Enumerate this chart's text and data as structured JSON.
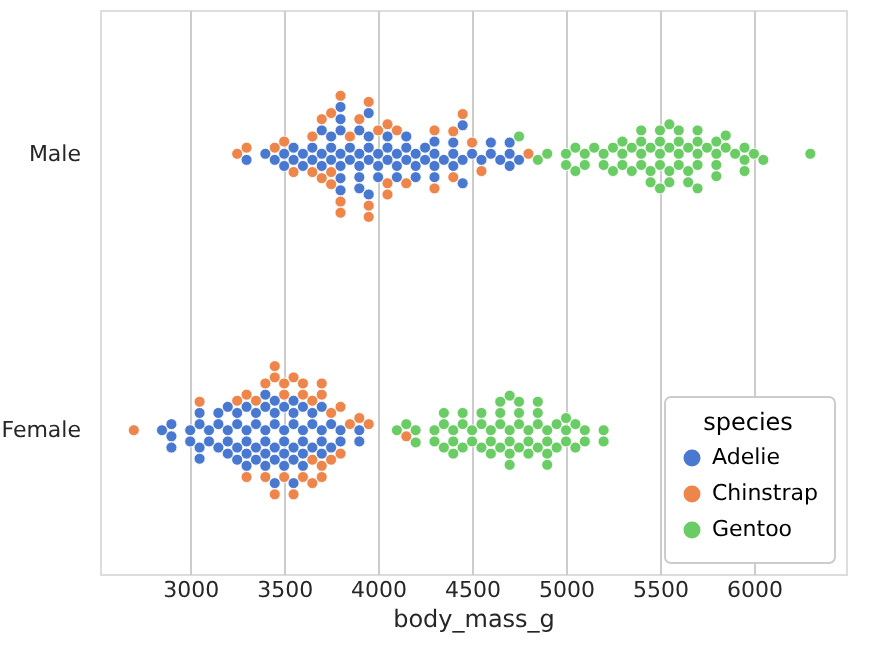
{
  "chart_data": {
    "type": "scatter",
    "orientation": "horizontal",
    "xlabel": "body_mass_g",
    "legend_title": "species",
    "legend": "bottom right",
    "grid": "x",
    "marker": "circle",
    "categories": [
      "Male",
      "Female"
    ],
    "xlim": [
      2520,
      6490
    ],
    "xticks": [
      3000,
      3500,
      4000,
      4500,
      5000,
      5500,
      6000
    ],
    "series": [
      {
        "name": "Adelie",
        "color": "#4878d0",
        "x": [
          "Male",
          "Male",
          "Male",
          "Male",
          "Male",
          "Male",
          "Male",
          "Male",
          "Male",
          "Male",
          "Male",
          "Male",
          "Male",
          "Male",
          "Male",
          "Male",
          "Male",
          "Male",
          "Male",
          "Male",
          "Male",
          "Male",
          "Male",
          "Male",
          "Male",
          "Male",
          "Male",
          "Male",
          "Male",
          "Male",
          "Male",
          "Male",
          "Male",
          "Male",
          "Male",
          "Male",
          "Male",
          "Male",
          "Male",
          "Male",
          "Male",
          "Male",
          "Male",
          "Male",
          "Male",
          "Male",
          "Male",
          "Male",
          "Male",
          "Male",
          "Male",
          "Male",
          "Male",
          "Male",
          "Male",
          "Male",
          "Male",
          "Male",
          "Male",
          "Male",
          "Male",
          "Male",
          "Male",
          "Male",
          "Male",
          "Male",
          "Male",
          "Male",
          "Male",
          "Male",
          "Male",
          "Male",
          "Male",
          "Female",
          "Female",
          "Female",
          "Female",
          "Female",
          "Female",
          "Female",
          "Female",
          "Female",
          "Female",
          "Female",
          "Female",
          "Female",
          "Female",
          "Female",
          "Female",
          "Female",
          "Female",
          "Female",
          "Female",
          "Female",
          "Female",
          "Female",
          "Female",
          "Female",
          "Female",
          "Female",
          "Female",
          "Female",
          "Female",
          "Female",
          "Female",
          "Female",
          "Female",
          "Female",
          "Female",
          "Female",
          "Female",
          "Female",
          "Female",
          "Female",
          "Female",
          "Female",
          "Female",
          "Female",
          "Female",
          "Female",
          "Female",
          "Female",
          "Female",
          "Female",
          "Female",
          "Female",
          "Female",
          "Female",
          "Female",
          "Female",
          "Female",
          "Female",
          "Female",
          "Female",
          "Female",
          "Female",
          "Female",
          "Female",
          "Female",
          "Female",
          "Female",
          "Female",
          "Female",
          "Female",
          "Female",
          "Female"
        ],
        "values": [
          3300,
          3400,
          3450,
          3500,
          3550,
          3550,
          3600,
          3650,
          3650,
          3700,
          3700,
          3750,
          3750,
          3800,
          3800,
          3800,
          3800,
          3800,
          3800,
          3850,
          3900,
          3900,
          3900,
          3900,
          3950,
          3950,
          3950,
          3950,
          4000,
          4000,
          4050,
          4050,
          4100,
          4100,
          4150,
          4150,
          4200,
          4200,
          4250,
          4300,
          4300,
          4300,
          4400,
          4400,
          4450,
          4450,
          4500,
          4550,
          4600,
          4650,
          4700,
          4700,
          4750,
          3500,
          3700,
          3900,
          4000,
          4050,
          4200,
          4250,
          4300,
          4350,
          3600,
          3750,
          3850,
          4100,
          4150,
          3950,
          3800,
          4400,
          4450,
          4600,
          4700,
          2850,
          2900,
          2900,
          2900,
          3000,
          3050,
          3050,
          3050,
          3100,
          3150,
          3150,
          3200,
          3200,
          3200,
          3250,
          3250,
          3300,
          3300,
          3300,
          3300,
          3350,
          3350,
          3400,
          3400,
          3400,
          3450,
          3450,
          3450,
          3450,
          3500,
          3500,
          3500,
          3550,
          3550,
          3550,
          3550,
          3600,
          3600,
          3600,
          3600,
          3650,
          3650,
          3700,
          3700,
          3700,
          3750,
          3750,
          3800,
          3800,
          3900,
          3900,
          3050,
          3150,
          3250,
          3300,
          3350,
          3400,
          3400,
          3450,
          3500,
          3500,
          3550,
          3400,
          3450,
          3200,
          3000,
          3100,
          3350,
          3250,
          3700,
          3600,
          3650,
          3550
        ]
      },
      {
        "name": "Chinstrap",
        "color": "#ee854a",
        "x": [
          "Male",
          "Male",
          "Male",
          "Male",
          "Male",
          "Male",
          "Male",
          "Male",
          "Male",
          "Male",
          "Male",
          "Male",
          "Male",
          "Male",
          "Male",
          "Male",
          "Male",
          "Male",
          "Male",
          "Male",
          "Male",
          "Male",
          "Male",
          "Male",
          "Male",
          "Male",
          "Male",
          "Male",
          "Male",
          "Male",
          "Male",
          "Male",
          "Male",
          "Male",
          "Female",
          "Female",
          "Female",
          "Female",
          "Female",
          "Female",
          "Female",
          "Female",
          "Female",
          "Female",
          "Female",
          "Female",
          "Female",
          "Female",
          "Female",
          "Female",
          "Female",
          "Female",
          "Female",
          "Female",
          "Female",
          "Female",
          "Female",
          "Female",
          "Female",
          "Female",
          "Female",
          "Female",
          "Female",
          "Female",
          "Female",
          "Female",
          "Female",
          "Female"
        ],
        "values": [
          3250,
          3300,
          3450,
          3500,
          3650,
          3650,
          3700,
          3700,
          3750,
          3750,
          3800,
          3800,
          3800,
          3850,
          3900,
          3950,
          3950,
          4000,
          4050,
          4050,
          4100,
          4150,
          4300,
          4300,
          4400,
          4450,
          4500,
          4550,
          4800,
          3550,
          3750,
          3950,
          4400,
          4050,
          2700,
          3050,
          3250,
          3300,
          3300,
          3350,
          3400,
          3400,
          3450,
          3450,
          3450,
          3500,
          3500,
          3500,
          3550,
          3600,
          3600,
          3650,
          3650,
          3650,
          3700,
          3700,
          3700,
          3700,
          3750,
          3750,
          3800,
          3800,
          3850,
          3900,
          3950,
          4150,
          3600,
          3550
        ]
      },
      {
        "name": "Gentoo",
        "color": "#6acc64",
        "x": [
          "Male",
          "Male",
          "Male",
          "Male",
          "Male",
          "Male",
          "Male",
          "Male",
          "Male",
          "Male",
          "Male",
          "Male",
          "Male",
          "Male",
          "Male",
          "Male",
          "Male",
          "Male",
          "Male",
          "Male",
          "Male",
          "Male",
          "Male",
          "Male",
          "Male",
          "Male",
          "Male",
          "Male",
          "Male",
          "Male",
          "Male",
          "Male",
          "Male",
          "Male",
          "Male",
          "Male",
          "Male",
          "Male",
          "Male",
          "Male",
          "Male",
          "Male",
          "Male",
          "Male",
          "Male",
          "Male",
          "Male",
          "Male",
          "Male",
          "Male",
          "Male",
          "Male",
          "Male",
          "Male",
          "Male",
          "Male",
          "Male",
          "Male",
          "Male",
          "Male",
          "Male",
          "Female",
          "Female",
          "Female",
          "Female",
          "Female",
          "Female",
          "Female",
          "Female",
          "Female",
          "Female",
          "Female",
          "Female",
          "Female",
          "Female",
          "Female",
          "Female",
          "Female",
          "Female",
          "Female",
          "Female",
          "Female",
          "Female",
          "Female",
          "Female",
          "Female",
          "Female",
          "Female",
          "Female",
          "Female",
          "Female",
          "Female",
          "Female",
          "Female",
          "Female",
          "Female",
          "Female",
          "Female",
          "Female",
          "Female",
          "Female",
          "Female",
          "Female",
          "Female",
          "Female",
          "Female",
          "Female",
          "Female",
          "Female",
          "Female",
          "Female",
          "Female",
          "Female",
          "Female",
          "Female",
          "Female",
          "Female",
          "Female",
          "Female"
        ],
        "values": [
          4750,
          4850,
          4900,
          5000,
          5000,
          5050,
          5100,
          5150,
          5200,
          5250,
          5300,
          5300,
          5350,
          5400,
          5400,
          5400,
          5450,
          5500,
          5500,
          5500,
          5550,
          5550,
          5550,
          5600,
          5600,
          5650,
          5650,
          5700,
          5700,
          5700,
          5700,
          5750,
          5800,
          5800,
          5800,
          5850,
          5850,
          5950,
          5950,
          6000,
          6050,
          6300,
          5200,
          5350,
          5450,
          5500,
          5600,
          5650,
          5700,
          5400,
          5550,
          5300,
          5100,
          5050,
          5250,
          5950,
          5900,
          5600,
          5800,
          5500,
          5450,
          4100,
          4150,
          4200,
          4300,
          4350,
          4350,
          4400,
          4400,
          4450,
          4450,
          4500,
          4500,
          4550,
          4550,
          4600,
          4600,
          4650,
          4650,
          4650,
          4700,
          4700,
          4700,
          4700,
          4750,
          4750,
          4750,
          4800,
          4800,
          4850,
          4850,
          4850,
          4900,
          4900,
          4900,
          4950,
          5000,
          5000,
          5050,
          5050,
          5100,
          5100,
          5200,
          5200,
          4400,
          4450,
          4600,
          4700,
          4750,
          4850,
          4900,
          5000,
          4200,
          4300,
          4550,
          4650,
          4800,
          4950,
          4350
        ]
      }
    ]
  }
}
